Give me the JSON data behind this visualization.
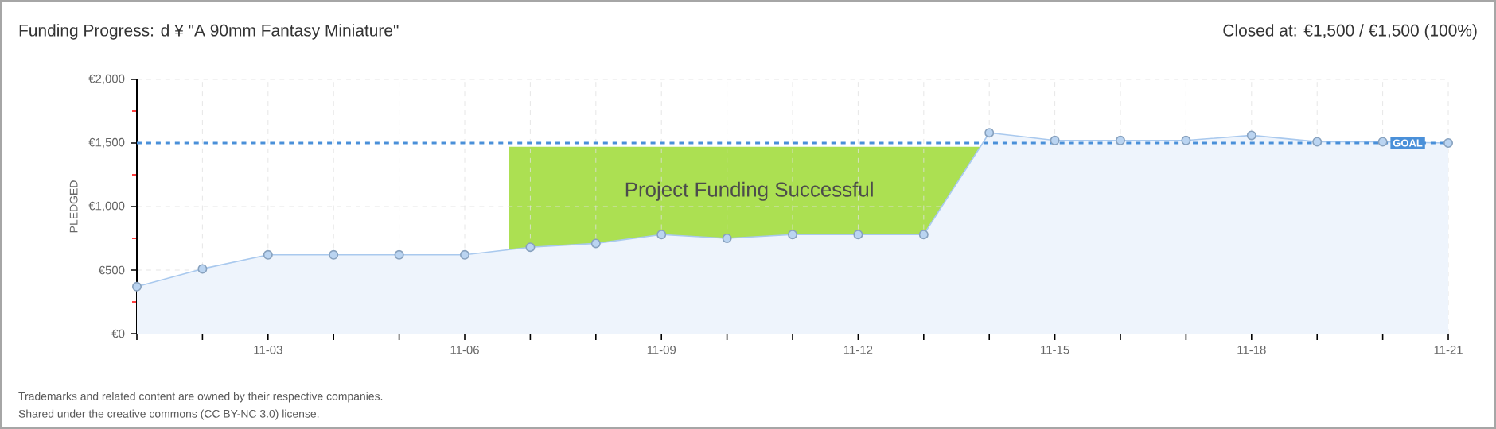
{
  "chart_data": {
    "type": "area",
    "title": "Funding Progress: d ¥ \"A 90mm Fantasy Miniature\"",
    "subtitle": "Closed at: €1,500 / €1,500 (100%)",
    "ylabel": "PLEDGED",
    "categories": [
      null,
      null,
      "11-03",
      null,
      null,
      "11-06",
      null,
      null,
      "11-09",
      null,
      null,
      "11-12",
      null,
      null,
      "11-15",
      null,
      null,
      "11-18",
      null,
      null,
      "11-21"
    ],
    "series": [
      {
        "color": "#a9c9ee",
        "values": [
          370,
          510,
          620,
          620,
          620,
          620,
          680,
          710,
          780,
          750,
          780,
          780,
          780,
          1580,
          1520,
          1520,
          1520,
          1560,
          1510,
          1510,
          1500
        ]
      }
    ],
    "ylim": [
      0,
      2000
    ],
    "yticks": [
      {
        "value": 0,
        "label": "€0"
      },
      {
        "value": 500,
        "label": "€500"
      },
      {
        "value": 1000,
        "label": "€1,000"
      },
      {
        "value": 1500,
        "label": "€1,500"
      },
      {
        "value": 2000,
        "label": "€2,000"
      }
    ],
    "ref_lines": [
      {
        "axis": "y",
        "value": 1500,
        "label": "GOAL",
        "color": "#4a90d9",
        "line_style": "dashed"
      }
    ],
    "grid": true,
    "marker": "circle",
    "annotations": [
      "Project Funding Successful",
      "Trademarks and related content are owned by their respective companies.",
      "Shared under the creative commons (CC BY-NC 3.0) license."
    ]
  }
}
